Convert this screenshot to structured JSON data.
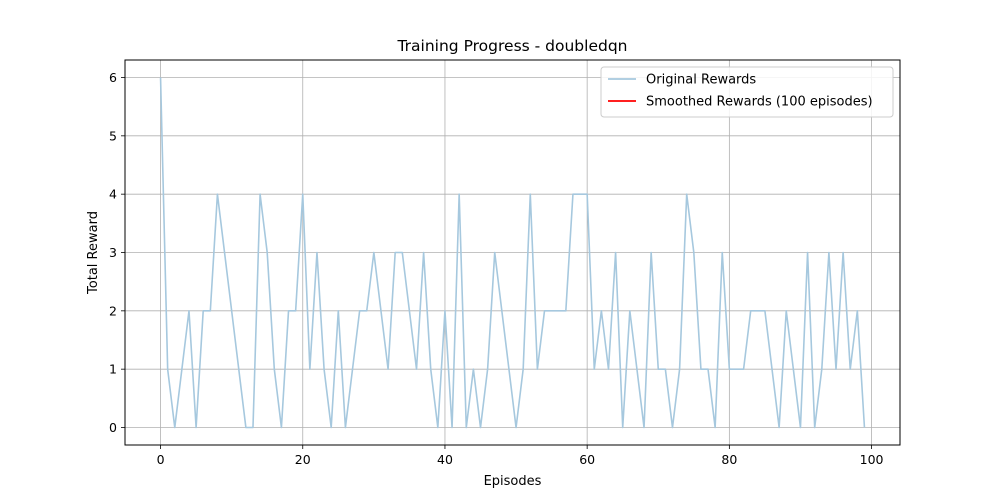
{
  "chart_data": {
    "type": "line",
    "title": "Training Progress - doubledqn",
    "xlabel": "Episodes",
    "ylabel": "Total Reward",
    "xlim": [
      -5,
      104
    ],
    "ylim": [
      -0.3,
      6.3
    ],
    "xticks": [
      0,
      20,
      40,
      60,
      80,
      100
    ],
    "yticks": [
      0,
      1,
      2,
      3,
      4,
      5,
      6
    ],
    "grid": true,
    "legend_position": "top-right",
    "series": [
      {
        "name": "Original Rewards",
        "color": "#a6c8de",
        "x": [
          0,
          1,
          2,
          3,
          4,
          5,
          6,
          7,
          8,
          9,
          10,
          11,
          12,
          13,
          14,
          15,
          16,
          17,
          18,
          19,
          20,
          21,
          22,
          23,
          24,
          25,
          26,
          27,
          28,
          29,
          30,
          31,
          32,
          33,
          34,
          35,
          36,
          37,
          38,
          39,
          40,
          41,
          42,
          43,
          44,
          45,
          46,
          47,
          48,
          49,
          50,
          51,
          52,
          53,
          54,
          55,
          56,
          57,
          58,
          59,
          60,
          61,
          62,
          63,
          64,
          65,
          66,
          67,
          68,
          69,
          70,
          71,
          72,
          73,
          74,
          75,
          76,
          77,
          78,
          79,
          80,
          81,
          82,
          83,
          84,
          85,
          86,
          87,
          88,
          89,
          90,
          91,
          92,
          93,
          94,
          95,
          96,
          97,
          98,
          99
        ],
        "values": [
          6,
          1,
          0,
          1,
          2,
          0,
          2,
          2,
          4,
          3,
          2,
          1,
          0,
          0,
          4,
          3,
          1,
          0,
          2,
          2,
          4,
          1,
          3,
          1,
          0,
          2,
          0,
          1,
          2,
          2,
          3,
          2,
          1,
          3,
          3,
          2,
          1,
          3,
          1,
          0,
          2,
          0,
          4,
          0,
          1,
          0,
          1,
          3,
          2,
          1,
          0,
          1,
          4,
          1,
          2,
          2,
          2,
          2,
          4,
          4,
          4,
          1,
          2,
          1,
          3,
          0,
          2,
          1,
          0,
          3,
          1,
          1,
          0,
          1,
          4,
          3,
          1,
          1,
          0,
          3,
          1,
          1,
          1,
          2,
          2,
          2,
          1,
          0,
          2,
          1,
          0,
          3,
          0,
          1,
          3,
          1,
          3,
          1,
          2,
          0
        ]
      },
      {
        "name": "Smoothed Rewards (100 episodes)",
        "color": "#ff0000",
        "x": [],
        "values": []
      }
    ]
  }
}
